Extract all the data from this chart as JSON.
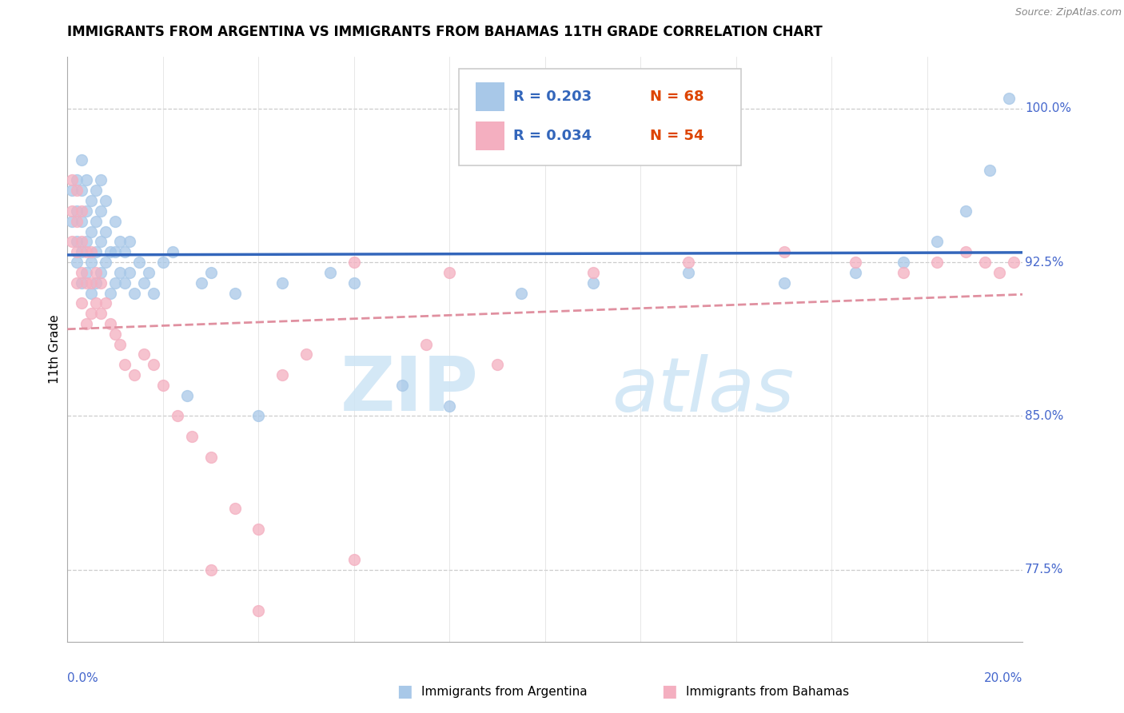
{
  "title": "IMMIGRANTS FROM ARGENTINA VS IMMIGRANTS FROM BAHAMAS 11TH GRADE CORRELATION CHART",
  "source": "Source: ZipAtlas.com",
  "ylabel": "11th Grade",
  "xlim": [
    0.0,
    0.2
  ],
  "ylim": [
    74.0,
    102.5
  ],
  "ytick_positions": [
    77.5,
    85.0,
    92.5,
    100.0
  ],
  "ytick_labels": [
    "77.5%",
    "85.0%",
    "92.5%",
    "100.0%"
  ],
  "argentina_color": "#a8c8e8",
  "bahamas_color": "#f4afc0",
  "argentina_line_color": "#3366bb",
  "bahamas_line_color": "#e090a0",
  "legend_R1": "R = 0.203",
  "legend_N1": "N = 68",
  "legend_R2": "R = 0.034",
  "legend_N2": "N = 54",
  "argentina_x": [
    0.001,
    0.001,
    0.002,
    0.002,
    0.002,
    0.002,
    0.003,
    0.003,
    0.003,
    0.003,
    0.003,
    0.004,
    0.004,
    0.004,
    0.004,
    0.005,
    0.005,
    0.005,
    0.005,
    0.006,
    0.006,
    0.006,
    0.006,
    0.007,
    0.007,
    0.007,
    0.007,
    0.008,
    0.008,
    0.008,
    0.009,
    0.009,
    0.01,
    0.01,
    0.01,
    0.011,
    0.011,
    0.012,
    0.012,
    0.013,
    0.013,
    0.014,
    0.015,
    0.016,
    0.017,
    0.018,
    0.02,
    0.022,
    0.025,
    0.028,
    0.03,
    0.035,
    0.04,
    0.045,
    0.055,
    0.06,
    0.07,
    0.08,
    0.095,
    0.11,
    0.13,
    0.15,
    0.165,
    0.175,
    0.182,
    0.188,
    0.193,
    0.197
  ],
  "argentina_y": [
    94.5,
    96.0,
    92.5,
    93.5,
    95.0,
    96.5,
    91.5,
    93.0,
    94.5,
    96.0,
    97.5,
    92.0,
    93.5,
    95.0,
    96.5,
    91.0,
    92.5,
    94.0,
    95.5,
    91.5,
    93.0,
    94.5,
    96.0,
    92.0,
    93.5,
    95.0,
    96.5,
    92.5,
    94.0,
    95.5,
    91.0,
    93.0,
    91.5,
    93.0,
    94.5,
    92.0,
    93.5,
    91.5,
    93.0,
    92.0,
    93.5,
    91.0,
    92.5,
    91.5,
    92.0,
    91.0,
    92.5,
    93.0,
    86.0,
    91.5,
    92.0,
    91.0,
    85.0,
    91.5,
    92.0,
    91.5,
    86.5,
    85.5,
    91.0,
    91.5,
    92.0,
    91.5,
    92.0,
    92.5,
    93.5,
    95.0,
    97.0,
    100.5
  ],
  "bahamas_x": [
    0.001,
    0.001,
    0.001,
    0.002,
    0.002,
    0.002,
    0.002,
    0.003,
    0.003,
    0.003,
    0.003,
    0.004,
    0.004,
    0.004,
    0.005,
    0.005,
    0.005,
    0.006,
    0.006,
    0.007,
    0.007,
    0.008,
    0.009,
    0.01,
    0.011,
    0.012,
    0.014,
    0.016,
    0.018,
    0.02,
    0.023,
    0.026,
    0.03,
    0.035,
    0.04,
    0.045,
    0.05,
    0.06,
    0.075,
    0.09,
    0.11,
    0.13,
    0.15,
    0.165,
    0.175,
    0.182,
    0.188,
    0.192,
    0.195,
    0.198,
    0.03,
    0.04,
    0.06,
    0.08
  ],
  "bahamas_y": [
    93.5,
    95.0,
    96.5,
    91.5,
    93.0,
    94.5,
    96.0,
    90.5,
    92.0,
    93.5,
    95.0,
    89.5,
    91.5,
    93.0,
    90.0,
    91.5,
    93.0,
    90.5,
    92.0,
    90.0,
    91.5,
    90.5,
    89.5,
    89.0,
    88.5,
    87.5,
    87.0,
    88.0,
    87.5,
    86.5,
    85.0,
    84.0,
    83.0,
    80.5,
    79.5,
    87.0,
    88.0,
    78.0,
    88.5,
    87.5,
    92.0,
    92.5,
    93.0,
    92.5,
    92.0,
    92.5,
    93.0,
    92.5,
    92.0,
    92.5,
    77.5,
    75.5,
    92.5,
    92.0
  ]
}
